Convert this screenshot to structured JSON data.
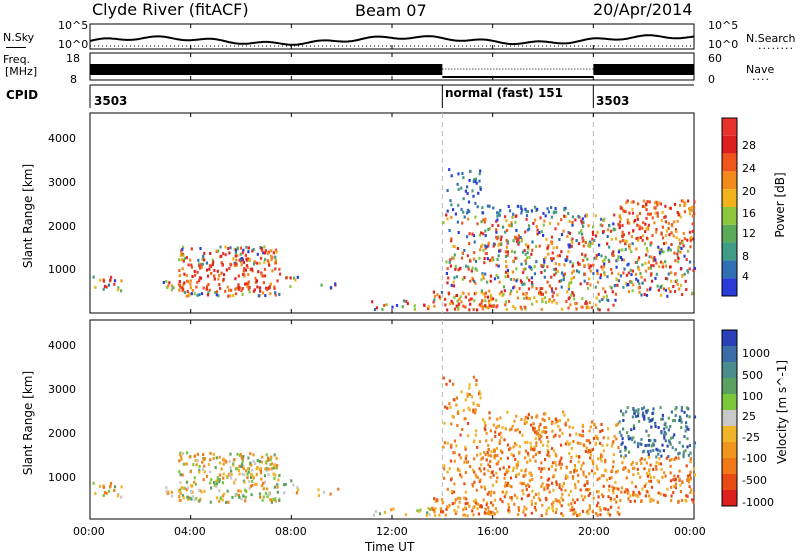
{
  "header": {
    "station": "Clyde River (fitACF)",
    "beam": "Beam 07",
    "date": "20/Apr/2014"
  },
  "nsky_panel": {
    "left_label": "N.Sky",
    "left_ticks": [
      "10^5",
      "10^0"
    ],
    "right_ticks": [
      "10^5",
      "10^0"
    ],
    "right_label": "N.Search",
    "right_legend": "........"
  },
  "freq_panel": {
    "left_label_1": "Freq.",
    "left_label_2": "[MHz]",
    "left_ticks": [
      "18",
      "8"
    ],
    "right_ticks": [
      "60",
      "0"
    ],
    "right_label": "Nave",
    "right_legend": "...."
  },
  "cpid_panel": {
    "label": "CPID",
    "segments": [
      {
        "text": "3503",
        "start_h": 0
      },
      {
        "text": "normal (fast) 151",
        "start_h": 14.0
      },
      {
        "text": "3503",
        "start_h": 20.0
      }
    ]
  },
  "chart_data": [
    {
      "type": "heatmap",
      "name": "power",
      "ylabel": "Slant Range [km]",
      "y_ticks": [
        "1000",
        "2000",
        "3000",
        "4000"
      ],
      "ylim": [
        200,
        4600
      ],
      "x_hours": [
        0,
        24
      ],
      "colorbar_label": "Power [dB]",
      "colorbar_ticks": [
        "4",
        "8",
        "12",
        "16",
        "20",
        "24",
        "28"
      ],
      "colorbar_colors": [
        "#2a3cd8",
        "#2f6fb4",
        "#3f9a86",
        "#5aaa5a",
        "#8cc63f",
        "#f2b21b",
        "#f28a1c",
        "#f0561c",
        "#dc1e1e",
        "#e8332a"
      ],
      "cpid_boundaries_h": [
        14.0,
        20.0
      ]
    },
    {
      "type": "heatmap",
      "name": "velocity",
      "ylabel": "Slant Range [km]",
      "y_ticks": [
        "1000",
        "2000",
        "3000",
        "4000"
      ],
      "ylim": [
        200,
        4600
      ],
      "x_hours": [
        0,
        24
      ],
      "colorbar_label": "Velocity [m s^-1]",
      "colorbar_ticks": [
        "1000",
        "500",
        "100",
        "25",
        "-25",
        "-100",
        "-500",
        "-1000"
      ],
      "colorbar_colors": [
        "#2840b8",
        "#3c6ca8",
        "#4a8c8c",
        "#5aa060",
        "#7cc63c",
        "#c8c8c8",
        "#f0b428",
        "#f0961e",
        "#f07818",
        "#e84a14",
        "#dc1e1e"
      ],
      "cpid_boundaries_h": [
        14.0,
        20.0
      ]
    }
  ],
  "x_axis": {
    "tick_labels": [
      "00:00",
      "04:00",
      "08:00",
      "12:00",
      "16:00",
      "20:00",
      "00:00"
    ],
    "label": "Time UT"
  }
}
